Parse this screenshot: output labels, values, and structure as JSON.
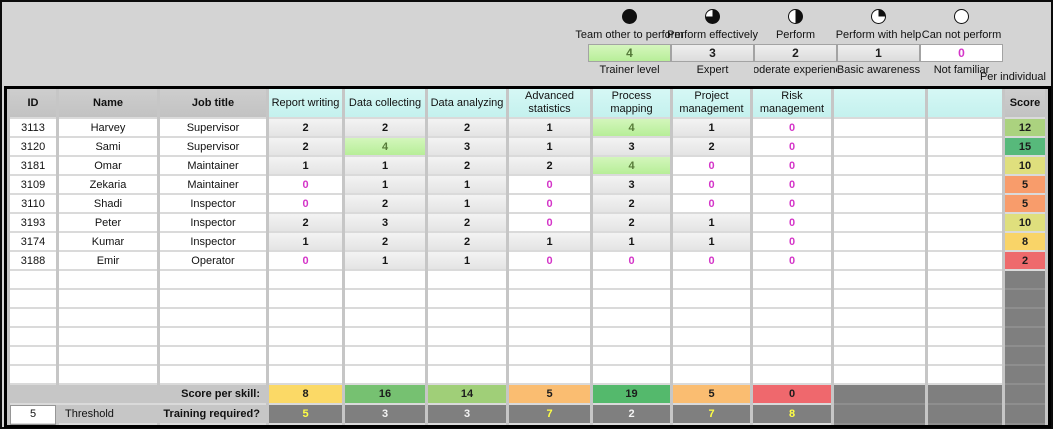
{
  "legend": {
    "per_individual_label": "Per individual",
    "levels": [
      {
        "ball": "harvey-ball-full-icon",
        "title": "Team other to perform",
        "value": "4",
        "label": "Trainer level"
      },
      {
        "ball": "harvey-ball-three-quarter-icon",
        "title": "Perform effectively",
        "value": "3",
        "label": "Expert"
      },
      {
        "ball": "harvey-ball-half-icon",
        "title": "Perform",
        "value": "2",
        "label": "Moderate experience"
      },
      {
        "ball": "harvey-ball-quarter-icon",
        "title": "Perform with help",
        "value": "1",
        "label": "Basic awareness"
      },
      {
        "ball": "harvey-ball-empty-icon",
        "title": "Can not perform",
        "value": "0",
        "label": "Not familiar"
      }
    ]
  },
  "colors": {
    "magenta_zero": "#d435c8",
    "level4_green": "#bdf09e",
    "header_cyan": "#cbf4f1",
    "dark_gray": "#7f7f7f",
    "training_yellow": "#ffff45",
    "training_white": "#f4f4f4"
  },
  "table": {
    "headers": [
      "ID",
      "Name",
      "Job title",
      "Report writing",
      "Data collecting",
      "Data analyzing",
      "Advanced statistics",
      "Process mapping",
      "Project management",
      "Risk management",
      "",
      "",
      "Score"
    ],
    "empty_row_count": 6,
    "rows": [
      {
        "id": "3113",
        "name": "Harvey",
        "job": "Supervisor",
        "skills": [
          "2",
          "2",
          "2",
          "1",
          "4",
          "1",
          "0"
        ],
        "score": "12",
        "score_color": "#abd27f"
      },
      {
        "id": "3120",
        "name": "Sami",
        "job": "Supervisor",
        "skills": [
          "2",
          "4",
          "3",
          "1",
          "3",
          "2",
          "0"
        ],
        "score": "15",
        "score_color": "#57b97b"
      },
      {
        "id": "3181",
        "name": "Omar",
        "job": "Maintainer",
        "skills": [
          "1",
          "1",
          "2",
          "2",
          "4",
          "0",
          "0"
        ],
        "score": "10",
        "score_color": "#dfdf7d"
      },
      {
        "id": "3109",
        "name": "Zekaria",
        "job": "Maintainer",
        "skills": [
          "0",
          "1",
          "1",
          "0",
          "3",
          "0",
          "0"
        ],
        "score": "5",
        "score_color": "#f89c6b"
      },
      {
        "id": "3110",
        "name": "Shadi",
        "job": "Inspector",
        "skills": [
          "0",
          "2",
          "1",
          "0",
          "2",
          "0",
          "0"
        ],
        "score": "5",
        "score_color": "#f89c6b"
      },
      {
        "id": "3193",
        "name": "Peter",
        "job": "Inspector",
        "skills": [
          "2",
          "3",
          "2",
          "0",
          "2",
          "1",
          "0"
        ],
        "score": "10",
        "score_color": "#dfdf7d"
      },
      {
        "id": "3174",
        "name": "Kumar",
        "job": "Inspector",
        "skills": [
          "1",
          "2",
          "2",
          "1",
          "1",
          "1",
          "0"
        ],
        "score": "8",
        "score_color": "#f9d468"
      },
      {
        "id": "3188",
        "name": "Emir",
        "job": "Operator",
        "skills": [
          "0",
          "1",
          "1",
          "0",
          "0",
          "0",
          "0"
        ],
        "score": "2",
        "score_color": "#ee6a6c"
      }
    ],
    "footer": {
      "score_per_skill_label": "Score per skill:",
      "scores": [
        {
          "value": "8",
          "color": "#fbd966"
        },
        {
          "value": "16",
          "color": "#76c171"
        },
        {
          "value": "14",
          "color": "#a0cf78"
        },
        {
          "value": "5",
          "color": "#fabd71"
        },
        {
          "value": "19",
          "color": "#54b96c"
        },
        {
          "value": "5",
          "color": "#fabd71"
        },
        {
          "value": "0",
          "color": "#ef686d"
        }
      ],
      "threshold_value": "5",
      "threshold_label": "Threshold",
      "training_label": "Training required?",
      "training": [
        {
          "value": "5",
          "color": "#ffff45"
        },
        {
          "value": "3",
          "color": "#f4f4f4"
        },
        {
          "value": "3",
          "color": "#f4f4f4"
        },
        {
          "value": "7",
          "color": "#ffff45"
        },
        {
          "value": "2",
          "color": "#f4f4f4"
        },
        {
          "value": "7",
          "color": "#ffff45"
        },
        {
          "value": "8",
          "color": "#ffff45"
        }
      ]
    }
  }
}
